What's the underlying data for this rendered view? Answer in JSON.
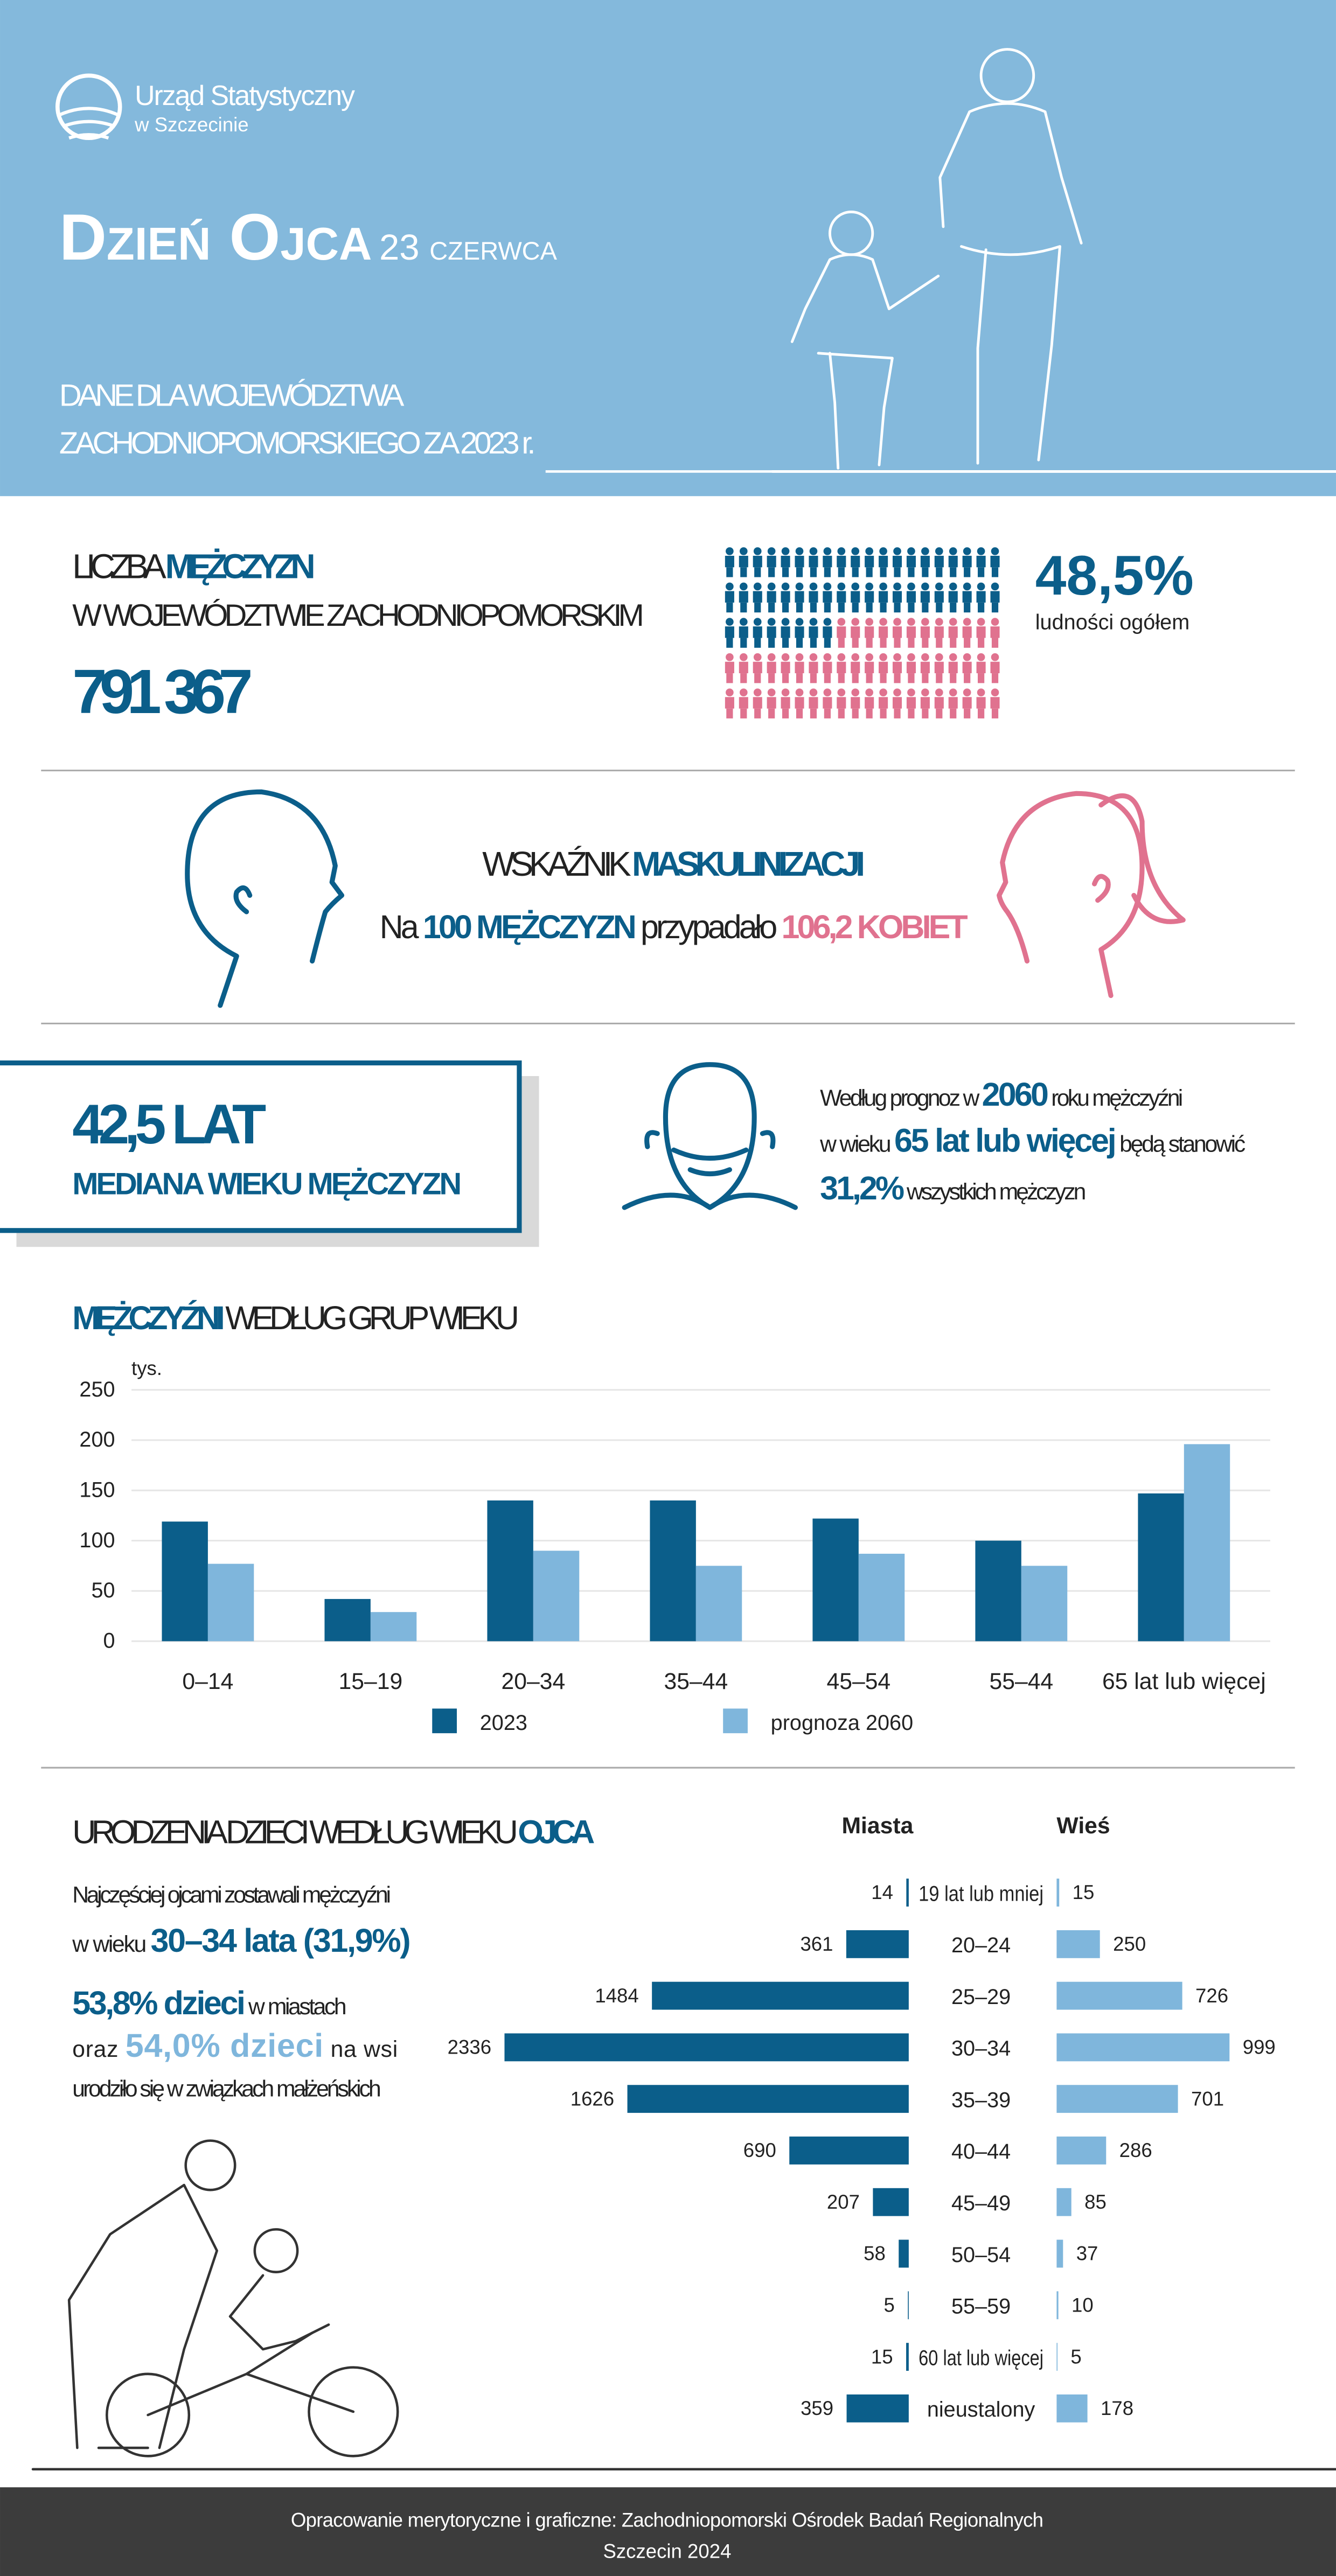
{
  "header": {
    "org": "Urząd Statystyczny",
    "org_sub": "w Szczecinie",
    "title": "Dzień Ojca",
    "date": "23 czerwca",
    "subtitle": [
      "DANE DLA WOJEWÓDZTWA",
      "ZACHODNIOPOMORSKIEGO ZA 2023 r."
    ]
  },
  "men": {
    "heading": [
      "LICZBA",
      "MĘŻCZYZN"
    ],
    "heading2": "W WOJEWÓDZTWIE ZACHODNIOPOMORSKIM",
    "count": "791 367",
    "share": {
      "value": 48.5,
      "label": "48,5%"
    },
    "share_note": "ludności ogółem",
    "colors": {
      "men": "#0b5e8a",
      "women": "#e0728f"
    }
  },
  "ratio": {
    "heading": [
      "WSKAŹNIK",
      "MASKULINIZACJI"
    ],
    "line": [
      "Na",
      "100 MĘŻCZYZN",
      "przypadało",
      "106,2 KOBIET"
    ]
  },
  "median": {
    "value": "42,5 LAT",
    "label": "MEDIANA WIEKU MĘŻCZYZN"
  },
  "forecast": [
    [
      "Według prognoz w",
      "2060",
      "roku mężczyźni"
    ],
    [
      "w wieku",
      "65 lat lub więcej",
      "będą stanowić"
    ],
    [
      "31,2%",
      "wszystkich mężczyzn"
    ]
  ],
  "chart_data": [
    {
      "type": "bar",
      "title": [
        "MĘŻCZYŹNI",
        "WEDŁUG GRUP WIEKU"
      ],
      "y_label": "tys.",
      "categories": [
        "0–14",
        "15–19",
        "20–34",
        "35–44",
        "45–54",
        "55–44",
        "65 lat lub więcej"
      ],
      "series": [
        {
          "name": "2023",
          "color": "#0b5e8a",
          "values": [
            119,
            42,
            140,
            140,
            122,
            100,
            147
          ]
        },
        {
          "name": "prognoza 2060",
          "color": "#7fb6dc",
          "values": [
            77,
            29,
            90,
            75,
            87,
            75,
            196
          ]
        }
      ],
      "ylim": [
        0,
        250
      ],
      "yticks": [
        0,
        50,
        100,
        150,
        200,
        250
      ],
      "grid": true
    },
    {
      "type": "butterfly",
      "title": [
        "URODZENIA DZIECI WEDŁUG WIEKU",
        "OJCA"
      ],
      "categories": [
        "19 lat lub mniej",
        "20–24",
        "25–29",
        "30–34",
        "35–39",
        "40–44",
        "45–49",
        "50–54",
        "55–59",
        "60 lat lub więcej",
        "nieustalony"
      ],
      "series": [
        {
          "name": "Miasta",
          "color": "#0b5e8a",
          "values": [
            14,
            361,
            1484,
            2336,
            1626,
            690,
            207,
            58,
            5,
            15,
            359
          ]
        },
        {
          "name": "Wieś",
          "color": "#7fb6dc",
          "values": [
            15,
            250,
            726,
            999,
            701,
            286,
            85,
            37,
            10,
            5,
            178
          ]
        }
      ]
    }
  ],
  "births_note": [
    [
      "Najczęściej ojcami zostawali mężczyźni"
    ],
    [
      "w wieku",
      "30–34 lata (31,9%)"
    ],
    [
      "53,8% dzieci",
      "w miastach"
    ],
    [
      "oraz",
      "54,0% dzieci",
      "na wsi"
    ],
    [
      "urodziło się w związkach małżeńskich"
    ]
  ],
  "footer": [
    "Opracowanie merytoryczne i graficzne: Zachodniopomorski Ośrodek Badań Regionalnych",
    "Szczecin 2024"
  ]
}
